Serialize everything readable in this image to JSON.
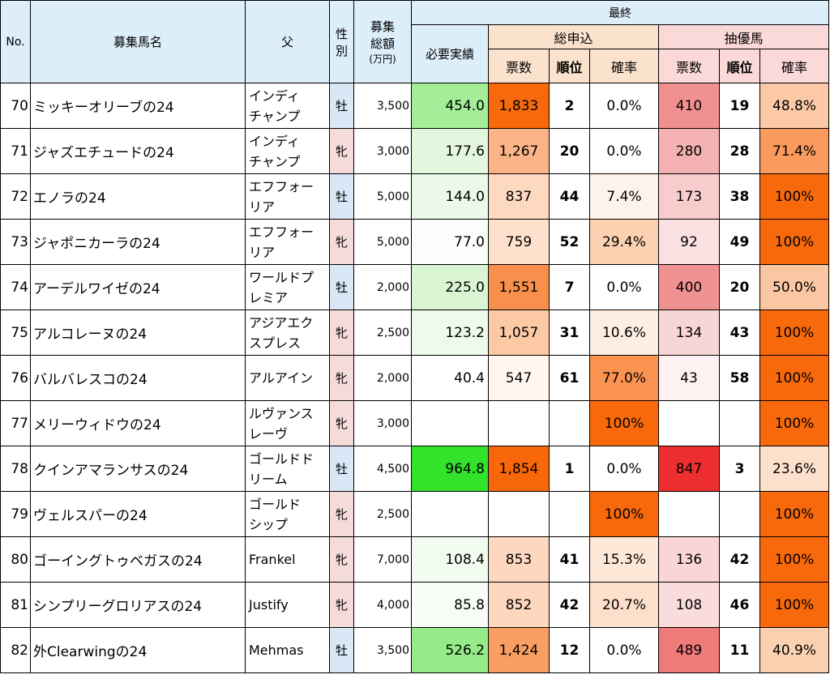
{
  "headers": {
    "no": "No.",
    "name": "募集馬名",
    "sire": "父",
    "sex": [
      "性",
      "別"
    ],
    "total": [
      "募集",
      "総額",
      "(万円)"
    ],
    "final": "最終",
    "required": "必要実績",
    "total_applications": "総申込",
    "lottery_priority": "抽優馬",
    "votes": "票数",
    "rank": "順位",
    "probability": "確率"
  },
  "colors": {
    "header_blue": "#ddeefb",
    "header_orange": "#fbe2cc",
    "header_pink": "#fbd9d9",
    "male": "#d9e8f7",
    "female": "#f6dbdb"
  },
  "rows": [
    {
      "no": "70",
      "name": "ミッキーオリーブの24",
      "sire": [
        "インディ",
        "チャンプ"
      ],
      "sex": "牡",
      "sex_type": "m",
      "total": "3,500",
      "req": "454.0",
      "req_color": "#a4ee98",
      "votes": "1,833",
      "votes_color": "#f8690c",
      "rank": "2",
      "pct": "0.0%",
      "pct_color": "#ffffff",
      "lp_votes": "410",
      "lp_votes_color": "#f09090",
      "lp_rank": "19",
      "lp_pct": "48.8%",
      "lp_pct_color": "#fbc9a6"
    },
    {
      "no": "71",
      "name": "ジャズエチュードの24",
      "sire": [
        "インディ",
        "チャンプ"
      ],
      "sex": "牝",
      "sex_type": "f",
      "total": "3,000",
      "req": "177.6",
      "req_color": "#e3f7df",
      "votes": "1,267",
      "votes_color": "#fbb487",
      "rank": "20",
      "pct": "0.0%",
      "pct_color": "#ffffff",
      "lp_votes": "280",
      "lp_votes_color": "#f4b1b1",
      "lp_rank": "28",
      "lp_pct": "71.4%",
      "lp_pct_color": "#fa9b5d"
    },
    {
      "no": "72",
      "name": "エノラの24",
      "sire": [
        "エフフォー",
        "リア"
      ],
      "sex": "牡",
      "sex_type": "m",
      "total": "5,000",
      "req": "144.0",
      "req_color": "#ebf9e8",
      "votes": "837",
      "votes_color": "#fdd9c0",
      "rank": "44",
      "pct": "7.4%",
      "pct_color": "#fef3ea",
      "lp_votes": "173",
      "lp_votes_color": "#f8cccc",
      "lp_rank": "38",
      "lp_pct": "100%",
      "lp_pct_color": "#f8690c"
    },
    {
      "no": "73",
      "name": "ジャポニカーラの24",
      "sire": [
        "エフフォー",
        "リア"
      ],
      "sex": "牝",
      "sex_type": "f",
      "total": "5,000",
      "req": "77.0",
      "req_color": "#fafdf9",
      "votes": "759",
      "votes_color": "#fde1cd",
      "rank": "52",
      "pct": "29.4%",
      "pct_color": "#fcd1b2",
      "lp_votes": "92",
      "lp_votes_color": "#fbe1e1",
      "lp_rank": "49",
      "lp_pct": "100%",
      "lp_pct_color": "#f8690c"
    },
    {
      "no": "74",
      "name": "アーデルワイゼの24",
      "sire": [
        "ワールドプ",
        "レミア"
      ],
      "sex": "牡",
      "sex_type": "m",
      "total": "2,000",
      "req": "225.0",
      "req_color": "#d9f5d4",
      "votes": "1,551",
      "votes_color": "#f98f4c",
      "rank": "7",
      "pct": "0.0%",
      "pct_color": "#ffffff",
      "lp_votes": "400",
      "lp_votes_color": "#f09292",
      "lp_rank": "20",
      "lp_pct": "50.0%",
      "lp_pct_color": "#fbc6a2"
    },
    {
      "no": "75",
      "name": "アルコレーヌの24",
      "sire": [
        "アジアエク",
        "スプレス"
      ],
      "sex": "牝",
      "sex_type": "f",
      "total": "2,500",
      "req": "123.2",
      "req_color": "#eefaec",
      "votes": "1,057",
      "votes_color": "#fcc9a5",
      "rank": "31",
      "pct": "10.6%",
      "pct_color": "#feeee2",
      "lp_votes": "134",
      "lp_votes_color": "#f9d6d6",
      "lp_rank": "43",
      "lp_pct": "100%",
      "lp_pct_color": "#f8690c"
    },
    {
      "no": "76",
      "name": "バルバレスコの24",
      "sire": [
        "アルアイン"
      ],
      "sex": "牝",
      "sex_type": "f",
      "total": "2,000",
      "req": "40.4",
      "req_color": "#ffffff",
      "votes": "547",
      "votes_color": "#fef6ef",
      "rank": "61",
      "pct": "77.0%",
      "pct_color": "#fa9250",
      "lp_votes": "43",
      "lp_votes_color": "#fdf1f1",
      "lp_rank": "58",
      "lp_pct": "100%",
      "lp_pct_color": "#f8690c"
    },
    {
      "no": "77",
      "name": "メリーウィドウの24",
      "sire": [
        "ルヴァンス",
        "レーヴ"
      ],
      "sex": "牝",
      "sex_type": "f",
      "total": "3,000",
      "req": "",
      "req_color": "#ffffff",
      "votes": "",
      "votes_color": "#ffffff",
      "rank": "",
      "pct": "100%",
      "pct_color": "#f8690c",
      "lp_votes": "",
      "lp_votes_color": "#ffffff",
      "lp_rank": "",
      "lp_pct": "100%",
      "lp_pct_color": "#f8690c"
    },
    {
      "no": "78",
      "name": "クインアマランサスの24",
      "sire": [
        "ゴールドド",
        "リーム"
      ],
      "sex": "牡",
      "sex_type": "m",
      "total": "4,500",
      "req": "964.8",
      "req_color": "#33e22b",
      "votes": "1,854",
      "votes_color": "#f8670a",
      "rank": "1",
      "pct": "0.0%",
      "pct_color": "#ffffff",
      "lp_votes": "847",
      "lp_votes_color": "#ee2f2f",
      "lp_rank": "3",
      "lp_pct": "23.6%",
      "lp_pct_color": "#fde0cb"
    },
    {
      "no": "79",
      "name": "ヴェルスパーの24",
      "sire": [
        "ゴールド",
        "シップ"
      ],
      "sex": "牝",
      "sex_type": "f",
      "total": "2,500",
      "req": "",
      "req_color": "#ffffff",
      "votes": "",
      "votes_color": "#ffffff",
      "rank": "",
      "pct": "100%",
      "pct_color": "#f8690c",
      "lp_votes": "",
      "lp_votes_color": "#ffffff",
      "lp_rank": "",
      "lp_pct": "100%",
      "lp_pct_color": "#f8690c"
    },
    {
      "no": "80",
      "name": "ゴーイングトゥベガスの24",
      "sire": [
        "Frankel"
      ],
      "sex": "牝",
      "sex_type": "f",
      "total": "7,000",
      "req": "108.4",
      "req_color": "#f1fbef",
      "votes": "853",
      "votes_color": "#fdd8be",
      "rank": "41",
      "pct": "15.3%",
      "pct_color": "#fde7d7",
      "lp_votes": "136",
      "lp_votes_color": "#f9d5d5",
      "lp_rank": "42",
      "lp_pct": "100%",
      "lp_pct_color": "#f8690c"
    },
    {
      "no": "81",
      "name": "シンプリーグロリアスの24",
      "sire": [
        "Justify"
      ],
      "sex": "牝",
      "sex_type": "f",
      "total": "4,000",
      "req": "85.8",
      "req_color": "#f7fcf6",
      "votes": "852",
      "votes_color": "#fdd8be",
      "rank": "42",
      "pct": "20.7%",
      "pct_color": "#fde0cb",
      "lp_votes": "108",
      "lp_votes_color": "#fadcdc",
      "lp_rank": "46",
      "lp_pct": "100%",
      "lp_pct_color": "#f8690c"
    },
    {
      "no": "82",
      "name": "外Clearwingの24",
      "sire": [
        "Mehmas"
      ],
      "sex": "牡",
      "sex_type": "m",
      "total": "3,500",
      "req": "526.2",
      "req_color": "#95eb88",
      "votes": "1,424",
      "votes_color": "#fa9f63",
      "rank": "12",
      "pct": "0.0%",
      "pct_color": "#ffffff",
      "lp_votes": "489",
      "lp_votes_color": "#ee7a7a",
      "lp_rank": "11",
      "lp_pct": "40.9%",
      "lp_pct_color": "#fcd1b2"
    }
  ]
}
